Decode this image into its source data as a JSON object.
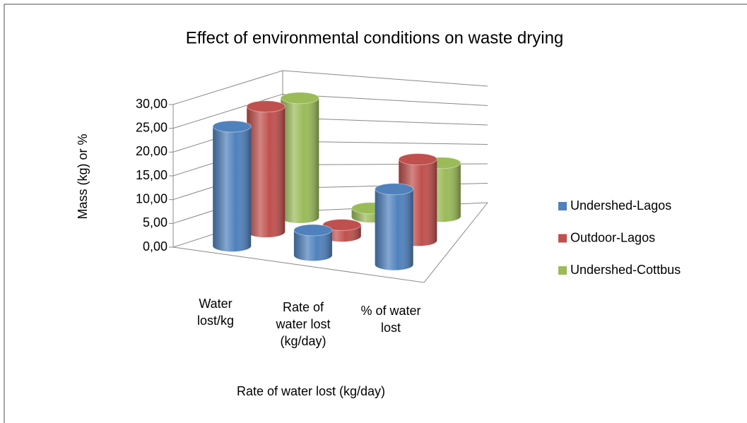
{
  "chart_data": {
    "type": "bar3d",
    "title": "Effect of environmental conditions on waste drying",
    "y_axis_label": "Mass (kg) or  %",
    "x_axis_label": "Rate of water lost (kg/day)",
    "categories": [
      "Water lost/kg",
      "Rate of water lost (kg/day)",
      "% of water lost"
    ],
    "series": [
      {
        "name": "Undershed-Lagos",
        "color": "#4f81bd",
        "values": [
          25.5,
          5.5,
          17
        ]
      },
      {
        "name": "Outdoor-Lagos",
        "color": "#c0504d",
        "values": [
          27,
          2.5,
          19
        ]
      },
      {
        "name": "Undershed-Cottbus",
        "color": "#9bbb59",
        "values": [
          26,
          2,
          13
        ]
      }
    ],
    "ylim": [
      0,
      30
    ],
    "yticks": [
      {
        "value": 0,
        "label": "0,00"
      },
      {
        "value": 5,
        "label": "5,00"
      },
      {
        "value": 10,
        "label": "10,00"
      },
      {
        "value": 15,
        "label": "15,00"
      },
      {
        "value": 20,
        "label": "20,00"
      },
      {
        "value": 25,
        "label": "25,00"
      },
      {
        "value": 30,
        "label": "30,00"
      }
    ],
    "grid": true,
    "legend": "right"
  }
}
